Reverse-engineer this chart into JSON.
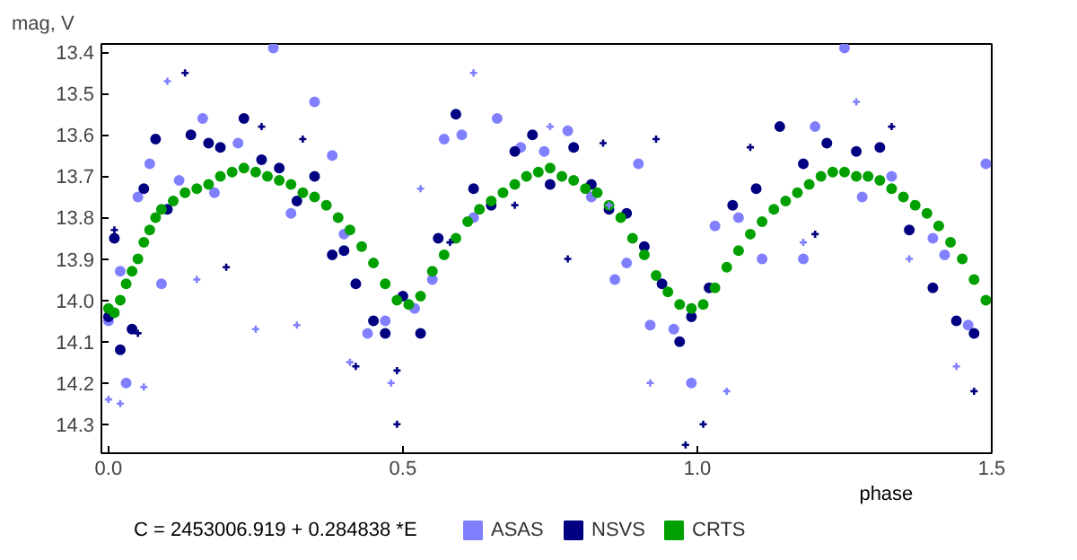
{
  "chart_data": {
    "type": "scatter",
    "xlabel": "phase",
    "ylabel": "mag, V",
    "annotations": [
      "C = 2453006.919 + 0.284838 *E"
    ],
    "xlim": [
      -0.012,
      1.5
    ],
    "ylim": [
      14.37,
      13.38
    ],
    "xticks": [
      {
        "value": 0,
        "label": "0.0"
      },
      0.5,
      {
        "value": 1,
        "label": "1.0"
      },
      1.5
    ],
    "yticks": [
      13.4,
      13.5,
      13.6,
      13.7,
      13.8,
      13.9,
      {
        "value": 14,
        "label": "14.0"
      },
      14.1,
      14.2,
      14.3
    ],
    "grid": false,
    "legend": "bottom",
    "marker": "circle",
    "series": [
      {
        "name": "ASAS",
        "color": "#8080ff",
        "x": [
          0.0,
          0.02,
          0.03,
          0.05,
          0.07,
          0.09,
          0.12,
          0.16,
          0.18,
          0.22,
          0.28,
          0.31,
          0.35,
          0.38,
          0.4,
          0.44,
          0.47,
          0.52,
          0.55,
          0.57,
          0.6,
          0.62,
          0.66,
          0.7,
          0.74,
          0.78,
          0.82,
          0.86,
          0.88,
          0.9,
          0.92,
          0.96,
          0.99,
          1.03,
          1.07,
          1.11,
          1.18,
          1.2,
          1.25,
          1.28,
          1.33,
          1.4,
          1.42,
          1.46,
          1.49
        ],
        "values": [
          14.05,
          13.93,
          14.2,
          13.75,
          13.67,
          13.96,
          13.71,
          13.56,
          13.74,
          13.62,
          13.39,
          13.79,
          13.52,
          13.65,
          13.84,
          14.08,
          14.05,
          14.02,
          13.95,
          13.61,
          13.6,
          13.8,
          13.56,
          13.63,
          13.64,
          13.59,
          13.75,
          13.95,
          13.91,
          13.67,
          14.06,
          14.07,
          14.2,
          13.82,
          13.8,
          13.9,
          13.9,
          13.58,
          13.39,
          13.75,
          13.7,
          13.85,
          13.89,
          14.06,
          13.67
        ]
      },
      {
        "name": "NSVS",
        "color": "#000080",
        "x": [
          0.0,
          0.01,
          0.02,
          0.04,
          0.06,
          0.08,
          0.1,
          0.14,
          0.17,
          0.19,
          0.23,
          0.26,
          0.29,
          0.32,
          0.35,
          0.38,
          0.4,
          0.42,
          0.45,
          0.47,
          0.5,
          0.53,
          0.56,
          0.59,
          0.62,
          0.65,
          0.69,
          0.72,
          0.75,
          0.79,
          0.82,
          0.85,
          0.88,
          0.91,
          0.94,
          0.97,
          0.99,
          1.02,
          1.06,
          1.1,
          1.14,
          1.18,
          1.22,
          1.27,
          1.31,
          1.36,
          1.4,
          1.44,
          1.47
        ],
        "values": [
          14.04,
          13.85,
          14.12,
          14.07,
          13.73,
          13.61,
          13.78,
          13.6,
          13.62,
          13.63,
          13.56,
          13.66,
          13.68,
          13.76,
          13.7,
          13.89,
          13.88,
          13.96,
          14.05,
          14.08,
          13.99,
          14.08,
          13.85,
          13.55,
          13.73,
          13.77,
          13.64,
          13.6,
          13.72,
          13.63,
          13.72,
          13.78,
          13.79,
          13.87,
          13.96,
          14.1,
          14.04,
          13.97,
          13.77,
          13.73,
          13.58,
          13.67,
          13.62,
          13.64,
          13.63,
          13.83,
          13.97,
          14.05,
          14.08
        ]
      },
      {
        "name": "CRTS",
        "color": "#00a000",
        "x": [
          0.0,
          0.01,
          0.02,
          0.03,
          0.04,
          0.05,
          0.06,
          0.07,
          0.08,
          0.09,
          0.11,
          0.13,
          0.15,
          0.17,
          0.19,
          0.21,
          0.23,
          0.25,
          0.27,
          0.29,
          0.31,
          0.33,
          0.35,
          0.37,
          0.39,
          0.41,
          0.43,
          0.45,
          0.47,
          0.49,
          0.51,
          0.53,
          0.55,
          0.57,
          0.59,
          0.61,
          0.63,
          0.65,
          0.67,
          0.69,
          0.71,
          0.73,
          0.75,
          0.77,
          0.79,
          0.81,
          0.83,
          0.85,
          0.87,
          0.89,
          0.91,
          0.93,
          0.95,
          0.97,
          0.99,
          1.01,
          1.03,
          1.05,
          1.07,
          1.09,
          1.11,
          1.13,
          1.15,
          1.17,
          1.19,
          1.21,
          1.23,
          1.25,
          1.27,
          1.29,
          1.31,
          1.33,
          1.35,
          1.37,
          1.39,
          1.41,
          1.43,
          1.45,
          1.47,
          1.49
        ],
        "values": [
          14.02,
          14.03,
          14.0,
          13.96,
          13.93,
          13.9,
          13.86,
          13.83,
          13.8,
          13.78,
          13.76,
          13.74,
          13.73,
          13.72,
          13.7,
          13.69,
          13.68,
          13.69,
          13.7,
          13.71,
          13.72,
          13.74,
          13.75,
          13.77,
          13.8,
          13.83,
          13.87,
          13.91,
          13.96,
          14.0,
          14.01,
          13.99,
          13.93,
          13.89,
          13.85,
          13.81,
          13.78,
          13.76,
          13.74,
          13.72,
          13.7,
          13.69,
          13.68,
          13.7,
          13.71,
          13.73,
          13.74,
          13.77,
          13.8,
          13.85,
          13.89,
          13.94,
          13.98,
          14.01,
          14.02,
          14.01,
          13.97,
          13.92,
          13.88,
          13.84,
          13.81,
          13.78,
          13.76,
          13.74,
          13.72,
          13.7,
          13.69,
          13.69,
          13.7,
          13.7,
          13.71,
          13.73,
          13.75,
          13.77,
          13.79,
          13.82,
          13.86,
          13.9,
          13.95,
          14.0
        ]
      },
      {
        "color": "#8080ff",
        "marker": "cross",
        "x": [
          0.0,
          0.02,
          0.06,
          0.1,
          0.15,
          0.25,
          0.32,
          0.41,
          0.48,
          0.53,
          0.62,
          0.75,
          0.85,
          0.92,
          1.05,
          1.18,
          1.27,
          1.36,
          1.44
        ],
        "values": [
          14.24,
          14.25,
          14.21,
          13.47,
          13.95,
          14.07,
          14.06,
          14.15,
          14.2,
          13.73,
          13.45,
          13.58,
          13.77,
          14.2,
          14.22,
          13.86,
          13.52,
          13.9,
          14.16
        ]
      },
      {
        "color": "#000080",
        "marker": "cross",
        "x": [
          0.01,
          0.05,
          0.13,
          0.2,
          0.26,
          0.33,
          0.42,
          0.49,
          0.49,
          0.58,
          0.69,
          0.78,
          0.84,
          0.93,
          0.98,
          1.01,
          1.09,
          1.2,
          1.33,
          1.47
        ],
        "values": [
          13.83,
          14.08,
          13.45,
          13.92,
          13.58,
          13.61,
          14.16,
          14.17,
          14.3,
          13.86,
          13.77,
          13.9,
          13.62,
          13.61,
          14.35,
          14.3,
          13.63,
          13.84,
          13.58,
          14.22
        ]
      }
    ]
  }
}
